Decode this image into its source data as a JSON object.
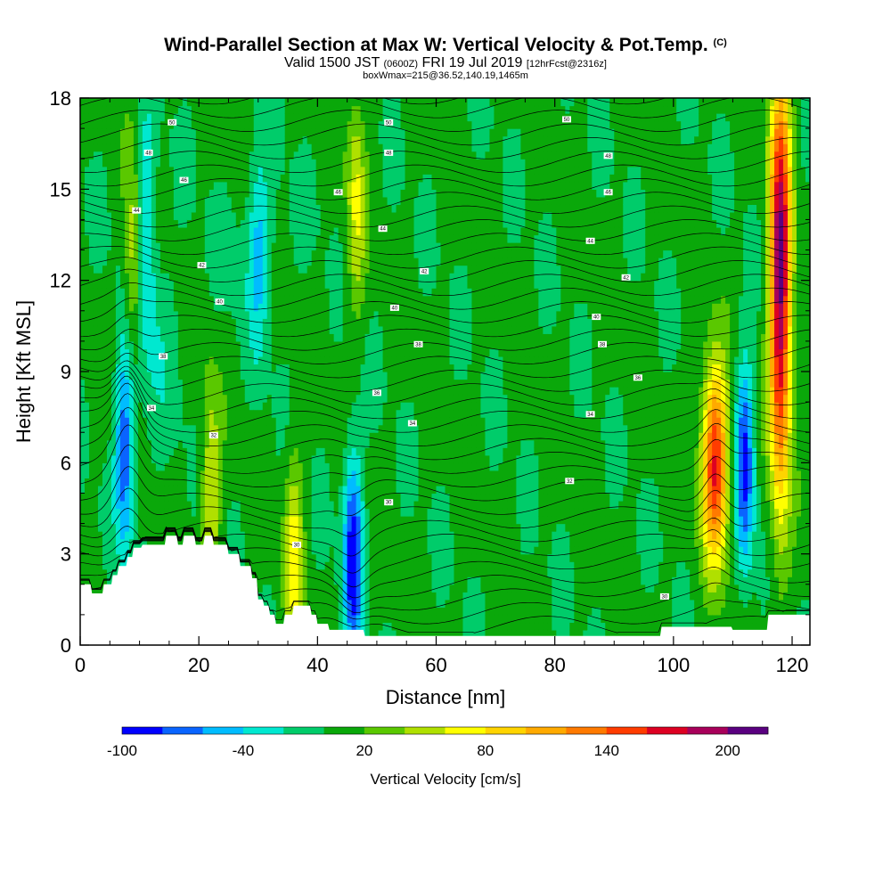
{
  "title": {
    "main": "Wind-Parallel Section at Max W: Vertical Velocity & Pot.Temp.",
    "copyright": "(C)",
    "valid_prefix": "Valid 1500 JST",
    "valid_utc": "(0600Z)",
    "valid_date": "FRI 19 Jul 2019",
    "forecast": "[12hrFcst@2316z]",
    "box_info": "boxWmax=215@36.52,140.19,1465m"
  },
  "colors": {
    "w_lt_n80": "#0000ff",
    "w_n80_n60": "#0a64ff",
    "w_n60_n40": "#00bcff",
    "w_n40_n20": "#00e8d0",
    "w_n20_0": "#00cc6a",
    "w_0_20": "#0aa80a",
    "w_20_40": "#5ac800",
    "w_40_60": "#b0e000",
    "w_60_80": "#ffff00",
    "w_80_100": "#ffd400",
    "w_100_120": "#ffaa00",
    "w_120_140": "#ff7a00",
    "w_140_160": "#ff3c00",
    "w_160_180": "#dd0022",
    "w_180_200": "#a8005a",
    "w_gt_200": "#5a0080",
    "terrain": "#ffffff",
    "contour": "#000000"
  },
  "chart_data": {
    "type": "heatmap",
    "xlabel": "Distance [nm]",
    "ylabel": "Height [Kft MSL]",
    "xlim": [
      0,
      123
    ],
    "ylim": [
      0,
      18
    ],
    "x_ticks": [
      0,
      20,
      40,
      60,
      80,
      100,
      120
    ],
    "y_ticks": [
      0,
      3,
      6,
      9,
      12,
      15,
      18
    ],
    "colorbar": {
      "label": "Vertical Velocity [cm/s]",
      "tick_labels": [
        "-100",
        "-40",
        "20",
        "80",
        "140",
        "200"
      ],
      "bounds": [
        -100,
        -80,
        -60,
        -40,
        -20,
        0,
        20,
        40,
        60,
        80,
        100,
        120,
        140,
        160,
        180,
        200,
        220
      ]
    },
    "w_features": [
      {
        "x": 9,
        "z": 12.5,
        "w": 70,
        "desc": "updraft"
      },
      {
        "x": 7.5,
        "z": 6.5,
        "w": -70,
        "desc": "downdraft"
      },
      {
        "x": 11,
        "z": 14,
        "w": -40,
        "desc": "downdraft"
      },
      {
        "x": 22,
        "z": 5,
        "w": 70,
        "desc": "updraft"
      },
      {
        "x": 36,
        "z": 3,
        "w": 70,
        "desc": "updraft"
      },
      {
        "x": 46,
        "z": 3,
        "w": -90,
        "desc": "downdraft"
      },
      {
        "x": 46.5,
        "z": 14.5,
        "w": 65,
        "desc": "updraft"
      },
      {
        "x": 30,
        "z": 13,
        "w": -30,
        "desc": "downdraft"
      },
      {
        "x": 107,
        "z": 6,
        "w": 170,
        "desc": "updraft"
      },
      {
        "x": 112,
        "z": 6,
        "w": -80,
        "desc": "downdraft"
      },
      {
        "x": 118,
        "z": 12,
        "w": 215,
        "desc": "updraft max"
      }
    ],
    "theta_labels": [
      {
        "x": 15.5,
        "z": 17.2,
        "label": "50"
      },
      {
        "x": 52,
        "z": 17.2,
        "label": "50"
      },
      {
        "x": 82,
        "z": 17.3,
        "label": "50"
      },
      {
        "x": 11.5,
        "z": 16.2,
        "label": "48"
      },
      {
        "x": 52,
        "z": 16.2,
        "label": "48"
      },
      {
        "x": 89,
        "z": 16.1,
        "label": "48"
      },
      {
        "x": 17.5,
        "z": 15.3,
        "label": "46"
      },
      {
        "x": 43.5,
        "z": 14.9,
        "label": "46"
      },
      {
        "x": 89,
        "z": 14.9,
        "label": "46"
      },
      {
        "x": 9.5,
        "z": 14.3,
        "label": "44"
      },
      {
        "x": 51,
        "z": 13.7,
        "label": "44"
      },
      {
        "x": 86,
        "z": 13.3,
        "label": "44"
      },
      {
        "x": 20.5,
        "z": 12.5,
        "label": "42"
      },
      {
        "x": 58,
        "z": 12.3,
        "label": "42"
      },
      {
        "x": 92,
        "z": 12.1,
        "label": "42"
      },
      {
        "x": 23.5,
        "z": 11.3,
        "label": "40"
      },
      {
        "x": 53,
        "z": 11.1,
        "label": "40"
      },
      {
        "x": 87,
        "z": 10.8,
        "label": "40"
      },
      {
        "x": 14,
        "z": 9.5,
        "label": "38"
      },
      {
        "x": 57,
        "z": 9.9,
        "label": "38"
      },
      {
        "x": 88,
        "z": 9.9,
        "label": "38"
      },
      {
        "x": 50,
        "z": 8.3,
        "label": "36"
      },
      {
        "x": 94,
        "z": 8.8,
        "label": "36"
      },
      {
        "x": 12,
        "z": 7.8,
        "label": "34"
      },
      {
        "x": 56,
        "z": 7.3,
        "label": "34"
      },
      {
        "x": 86,
        "z": 7.6,
        "label": "34"
      },
      {
        "x": 22.5,
        "z": 6.9,
        "label": "32"
      },
      {
        "x": 82.5,
        "z": 5.4,
        "label": "32"
      },
      {
        "x": 52,
        "z": 4.7,
        "label": "30"
      },
      {
        "x": 36.5,
        "z": 3.3,
        "label": "30"
      },
      {
        "x": 98.5,
        "z": 1.6,
        "label": "30"
      }
    ]
  }
}
